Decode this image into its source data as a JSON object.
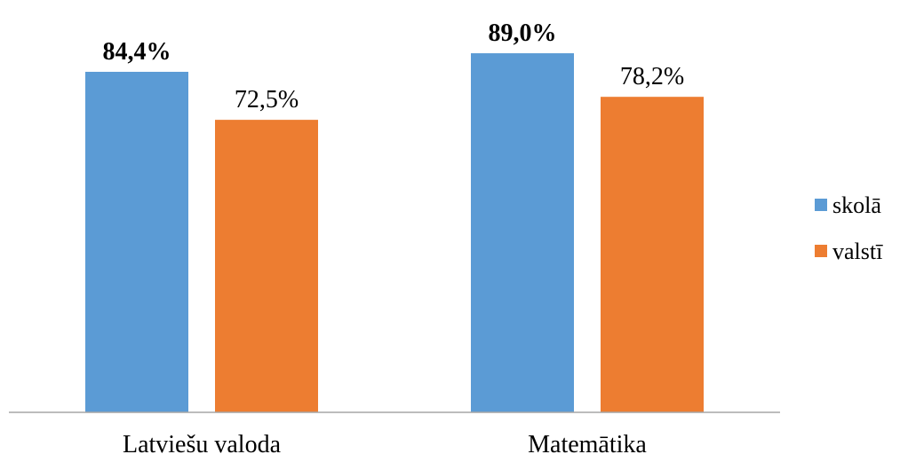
{
  "chart_data": {
    "type": "bar",
    "categories": [
      "Latviešu valoda",
      "Matemātika"
    ],
    "series": [
      {
        "name": "skolā",
        "values": [
          84.4,
          89.0
        ],
        "labels": [
          "84,4%",
          "89,0%"
        ],
        "color": "#5B9BD5",
        "label_weight": "bold"
      },
      {
        "name": "valstī",
        "values": [
          72.5,
          78.2
        ],
        "labels": [
          "72,5%",
          "78,2%"
        ],
        "color": "#ED7D31",
        "label_weight": "normal"
      }
    ],
    "ylim": [
      0,
      100
    ],
    "grid": false,
    "legend_position": "right",
    "axis_color": "#A6A6A6",
    "text_color": "#000000"
  }
}
